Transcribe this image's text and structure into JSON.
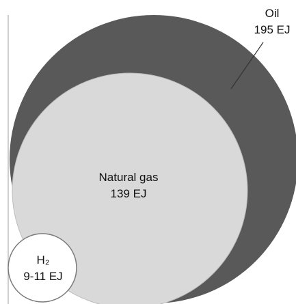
{
  "chart_data": {
    "type": "bubble",
    "title": "",
    "series": [
      {
        "name": "Oil",
        "value_label": "195 EJ",
        "value": 195,
        "color": "#595959"
      },
      {
        "name": "Natural gas",
        "value_label": "139 EJ",
        "value": 139,
        "color": "#d9d9d9"
      },
      {
        "name": "H₂",
        "value_label": "9-11 EJ",
        "value": 10,
        "color": "#ffffff"
      }
    ]
  }
}
